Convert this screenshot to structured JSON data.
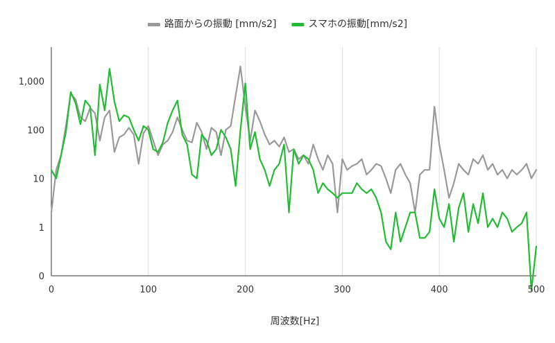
{
  "chart_data": {
    "type": "line",
    "title": "",
    "xlabel": "周波数[Hz]",
    "ylabel": "",
    "xlim": [
      0,
      500
    ],
    "ylim": [
      0.1,
      5000
    ],
    "y_scale": "log",
    "x_ticks": [
      0,
      100,
      200,
      300,
      400,
      500
    ],
    "x_tick_labels": [
      "0",
      "100",
      "200",
      "300",
      "400",
      "500"
    ],
    "y_ticks": [
      0.1,
      1,
      10,
      100,
      1000
    ],
    "y_tick_labels": [
      "0",
      "1",
      "10",
      "100",
      "1,000"
    ],
    "grid": "vertical",
    "legend_position": "top",
    "series": [
      {
        "name": "路面からの振動 [mm/s2]",
        "color": "#999999",
        "x": [
          0,
          5,
          10,
          15,
          20,
          25,
          30,
          35,
          40,
          45,
          50,
          55,
          60,
          65,
          70,
          75,
          80,
          85,
          90,
          95,
          100,
          105,
          110,
          115,
          120,
          125,
          130,
          135,
          140,
          145,
          150,
          155,
          160,
          165,
          170,
          175,
          180,
          185,
          190,
          195,
          200,
          205,
          210,
          215,
          220,
          225,
          230,
          235,
          240,
          245,
          250,
          255,
          260,
          265,
          270,
          275,
          280,
          285,
          290,
          295,
          300,
          305,
          310,
          315,
          320,
          325,
          330,
          335,
          340,
          345,
          350,
          355,
          360,
          365,
          370,
          375,
          380,
          385,
          390,
          395,
          400,
          405,
          410,
          415,
          420,
          425,
          430,
          435,
          440,
          445,
          450,
          455,
          460,
          465,
          470,
          475,
          480,
          485,
          490,
          495,
          500
        ],
        "values": [
          2,
          15,
          30,
          120,
          550,
          420,
          180,
          150,
          280,
          220,
          60,
          180,
          250,
          35,
          70,
          80,
          110,
          80,
          20,
          85,
          120,
          60,
          30,
          50,
          60,
          90,
          180,
          100,
          60,
          55,
          140,
          90,
          40,
          110,
          90,
          30,
          100,
          120,
          500,
          2000,
          300,
          60,
          250,
          150,
          80,
          50,
          60,
          45,
          70,
          35,
          40,
          25,
          30,
          20,
          50,
          25,
          15,
          30,
          20,
          2,
          25,
          15,
          18,
          20,
          25,
          12,
          15,
          20,
          18,
          10,
          5,
          15,
          20,
          12,
          8,
          2,
          12,
          15,
          15,
          300,
          50,
          15,
          4,
          8,
          20,
          15,
          12,
          25,
          20,
          30,
          15,
          20,
          12,
          15,
          10,
          15,
          12,
          15,
          20,
          10,
          15
        ]
      },
      {
        "name": "スマホの振動[mm/s2]",
        "color": "#22bb33",
        "x": [
          0,
          5,
          10,
          15,
          20,
          25,
          30,
          35,
          40,
          45,
          50,
          55,
          60,
          65,
          70,
          75,
          80,
          85,
          90,
          95,
          100,
          105,
          110,
          115,
          120,
          125,
          130,
          135,
          140,
          145,
          150,
          155,
          160,
          165,
          170,
          175,
          180,
          185,
          190,
          195,
          200,
          205,
          210,
          215,
          220,
          225,
          230,
          235,
          240,
          245,
          250,
          255,
          260,
          265,
          270,
          275,
          280,
          285,
          290,
          295,
          300,
          305,
          310,
          315,
          320,
          325,
          330,
          335,
          340,
          345,
          350,
          355,
          360,
          365,
          370,
          375,
          380,
          385,
          390,
          395,
          400,
          405,
          410,
          415,
          420,
          425,
          430,
          435,
          440,
          445,
          450,
          455,
          460,
          465,
          470,
          475,
          480,
          485,
          490,
          495,
          500
        ],
        "values": [
          15,
          10,
          30,
          90,
          600,
          350,
          130,
          400,
          300,
          30,
          850,
          250,
          1800,
          380,
          150,
          200,
          180,
          100,
          60,
          120,
          100,
          40,
          35,
          55,
          140,
          250,
          400,
          80,
          50,
          12,
          10,
          80,
          60,
          30,
          40,
          100,
          70,
          40,
          7,
          100,
          900,
          40,
          90,
          25,
          15,
          7,
          15,
          20,
          50,
          2,
          40,
          20,
          30,
          25,
          15,
          5,
          8,
          6,
          5,
          4,
          5,
          5,
          5,
          8,
          6,
          5,
          6,
          4,
          2,
          0.5,
          0.35,
          2,
          0.5,
          1,
          2,
          2,
          0.6,
          0.6,
          0.8,
          6,
          1.5,
          1,
          3,
          0.5,
          2.5,
          5,
          0.8,
          3,
          1.2,
          5,
          1,
          1.5,
          1,
          2,
          1.5,
          0.8,
          1,
          1.2,
          2,
          0.05,
          0.4
        ]
      }
    ]
  }
}
